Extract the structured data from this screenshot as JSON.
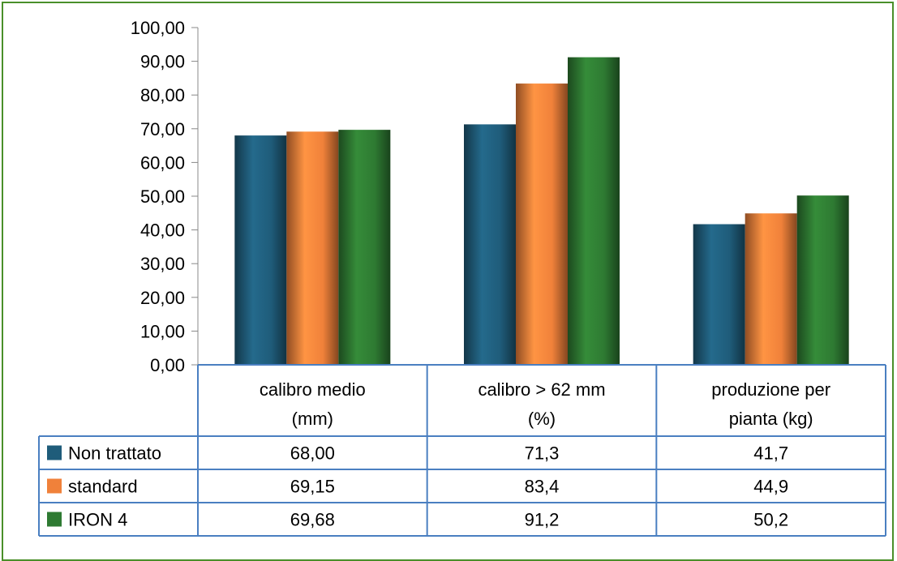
{
  "chart_data": {
    "type": "bar",
    "title": "",
    "xlabel": "",
    "ylabel": "",
    "ylim": [
      0,
      100
    ],
    "ytick_step": 10,
    "ytick_labels": [
      "0,00",
      "10,00",
      "20,00",
      "30,00",
      "40,00",
      "50,00",
      "60,00",
      "70,00",
      "80,00",
      "90,00",
      "100,00"
    ],
    "grid": false,
    "legend": "data-table-left",
    "categories": [
      [
        "calibro medio",
        "(mm)"
      ],
      [
        "calibro > 62 mm",
        "(%)"
      ],
      [
        "produzione per",
        "pianta (kg)"
      ]
    ],
    "series": [
      {
        "name": "Non trattato",
        "color": "#1f5c7a",
        "values": [
          68.0,
          71.3,
          41.7
        ],
        "labels": [
          "68,00",
          "71,3",
          "41,7"
        ]
      },
      {
        "name": "standard",
        "color": "#f0813a",
        "values": [
          69.15,
          83.4,
          44.9
        ],
        "labels": [
          "69,15",
          "83,4",
          "44,9"
        ]
      },
      {
        "name": "IRON 4",
        "color": "#2e7a32",
        "values": [
          69.68,
          91.2,
          50.2
        ],
        "labels": [
          "69,68",
          "91,2",
          "50,2"
        ]
      }
    ]
  },
  "colors": {
    "frame_border": "#4a8f2a",
    "table_border": "#4a7fc1",
    "axis": "#888888"
  }
}
